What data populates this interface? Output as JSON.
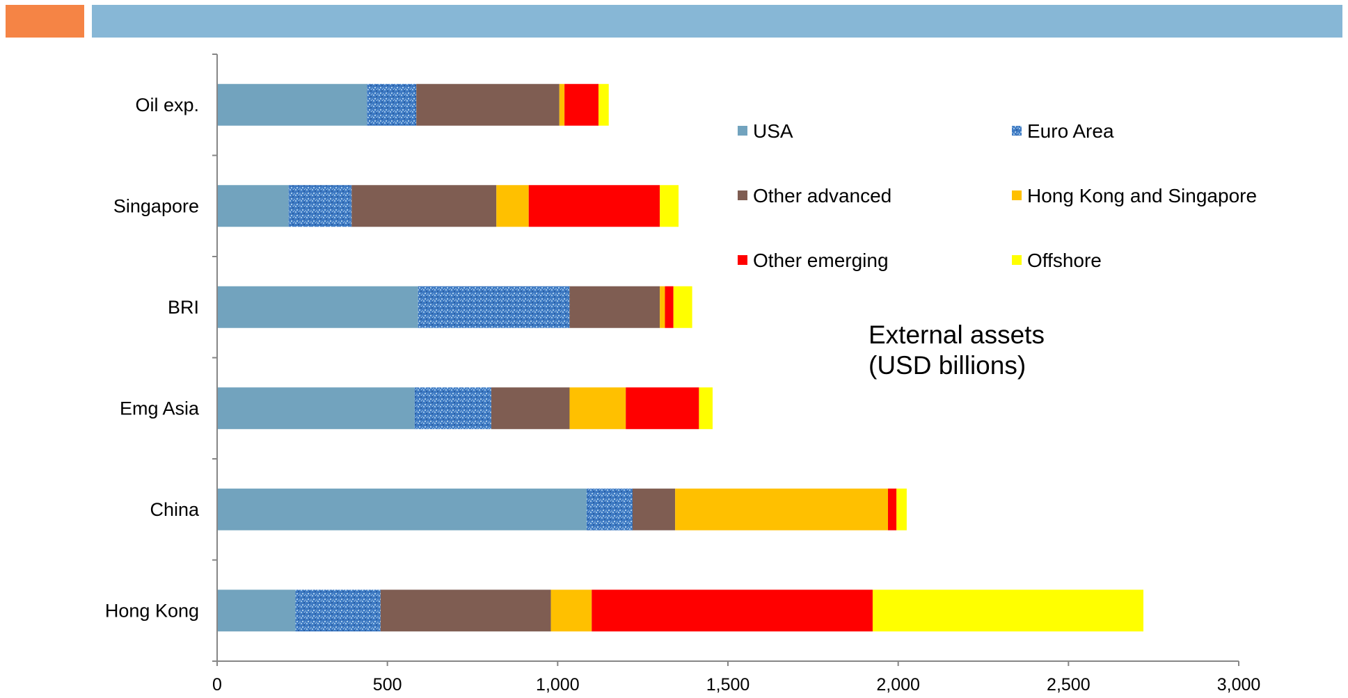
{
  "header": {
    "accent_left_color": "#F58445",
    "accent_right_color": "#87B7D6"
  },
  "chart_data": {
    "type": "bar",
    "orientation": "horizontal",
    "stacked": true,
    "categories": [
      "Oil exp.",
      "Singapore",
      "BRI",
      "Emg Asia",
      "China",
      "Hong Kong"
    ],
    "series": [
      {
        "name": "USA",
        "color": "#72A3BE",
        "pattern": "solid",
        "values": [
          440,
          210,
          590,
          580,
          1085,
          230
        ]
      },
      {
        "name": "Euro Area",
        "color": "#3F7BC4",
        "pattern": "textured",
        "values": [
          145,
          185,
          445,
          225,
          135,
          250
        ]
      },
      {
        "name": "Other advanced",
        "color": "#7F5D52",
        "pattern": "solid",
        "values": [
          420,
          425,
          265,
          230,
          125,
          500
        ]
      },
      {
        "name": "Hong Kong and Singapore",
        "color": "#FFC000",
        "pattern": "solid",
        "values": [
          15,
          95,
          15,
          165,
          625,
          120
        ]
      },
      {
        "name": "Other emerging",
        "color": "#FF0000",
        "pattern": "solid",
        "values": [
          100,
          385,
          25,
          215,
          25,
          825
        ]
      },
      {
        "name": "Offshore",
        "color": "#FFFF00",
        "pattern": "solid",
        "values": [
          30,
          55,
          55,
          40,
          30,
          795
        ]
      }
    ],
    "x_ticks": [
      "0",
      "500",
      "1,000",
      "1,500",
      "2,000",
      "2,500",
      "3,000"
    ],
    "xlim": [
      0,
      3000
    ],
    "grid": false,
    "legend_placement": "upper-right (inside plot, 2 columns)",
    "annotation": [
      "External assets",
      "(USD billions)"
    ]
  }
}
